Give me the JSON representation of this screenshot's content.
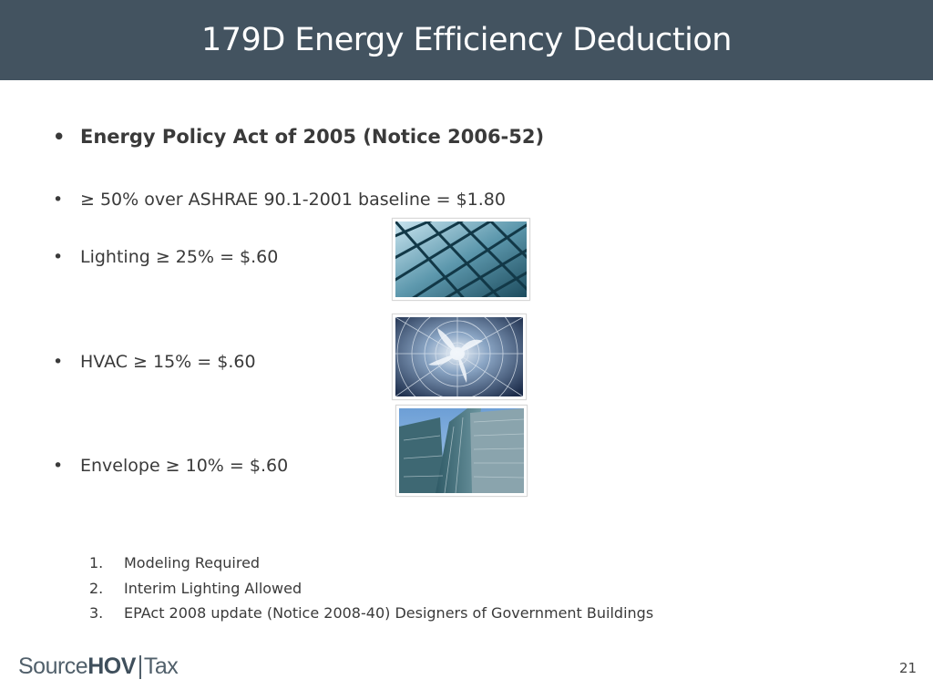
{
  "title": "179D Energy Efficiency Deduction",
  "bullets": [
    "Energy Policy Act of 2005 (Notice 2006-52)",
    "≥ 50% over ASHRAE 90.1-2001 baseline = $1.80",
    "Lighting ≥ 25% = $.60",
    "HVAC ≥ 15% = $.60",
    "Envelope ≥ 10% = $.60"
  ],
  "bullet_symbol": "•",
  "numbered_items": [
    {
      "num": "1.",
      "text": "Modeling Required"
    },
    {
      "num": "2.",
      "text": "Interim Lighting Allowed"
    },
    {
      "num": "3.",
      "text": "EPAct 2008 update (Notice 2008-40) Designers of Government Buildings"
    }
  ],
  "logo": {
    "part1": "Source",
    "part2": "HOV",
    "part3": "Tax"
  },
  "page_number": "21",
  "colors": {
    "title_bar": "#435360",
    "logo": "#51606b"
  }
}
